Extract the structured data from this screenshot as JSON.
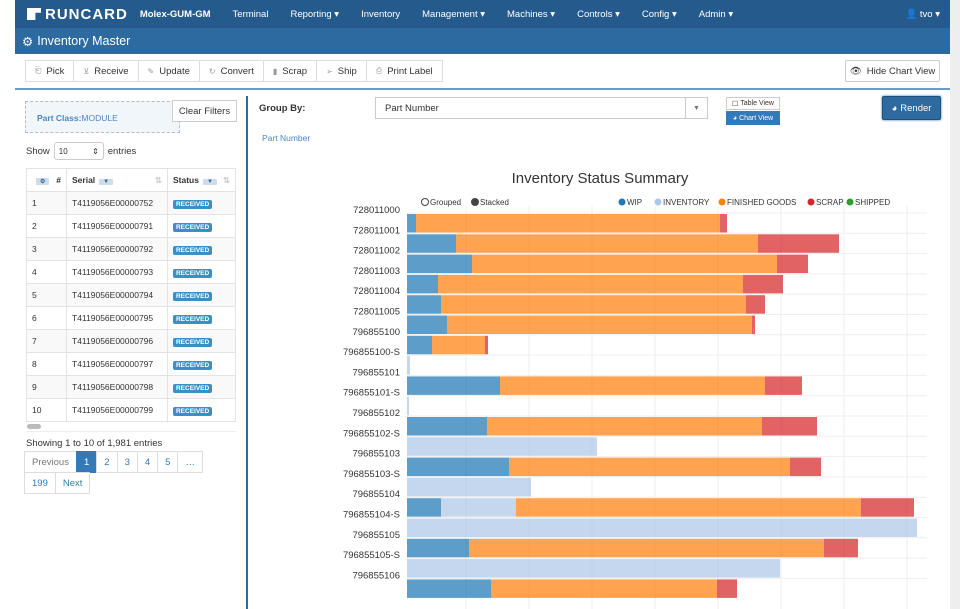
{
  "nav": {
    "logo": "RUNCARD",
    "brand": "Molex-GUM-GM",
    "items": [
      "Terminal",
      "Reporting ▾",
      "Inventory",
      "Management ▾",
      "Machines ▾",
      "Controls ▾",
      "Config ▾",
      "Admin ▾"
    ],
    "user": "👤 tvo ▾"
  },
  "title": "Inventory Master",
  "toolbar": [
    {
      "icon": "clipboard-icon",
      "glyph": "⎗",
      "label": "Pick"
    },
    {
      "icon": "download-icon",
      "glyph": "⊻",
      "label": "Receive"
    },
    {
      "icon": "edit-icon",
      "glyph": "✎",
      "label": "Update"
    },
    {
      "icon": "refresh-icon",
      "glyph": "↻",
      "label": "Convert"
    },
    {
      "icon": "trash-icon",
      "glyph": "▮",
      "label": "Scrap"
    },
    {
      "icon": "send-icon",
      "glyph": "➢",
      "label": "Ship"
    },
    {
      "icon": "print-icon",
      "glyph": "⎙",
      "label": "Print Label"
    }
  ],
  "hide_chart": "Hide Chart View",
  "filter": {
    "key": "Part Class:",
    "value": "MODULE",
    "clear": "Clear Filters"
  },
  "show": {
    "prefix": "Show",
    "value": "10",
    "suffix": "entries"
  },
  "table": {
    "headers": [
      "#",
      "Serial",
      "Status"
    ],
    "rows": [
      [
        "1",
        "T4119056E00000752",
        "RECEIVED"
      ],
      [
        "2",
        "T4119056E00000791",
        "RECEIVED"
      ],
      [
        "3",
        "T4119056E00000792",
        "RECEIVED"
      ],
      [
        "4",
        "T4119056E00000793",
        "RECEIVED"
      ],
      [
        "5",
        "T4119056E00000794",
        "RECEIVED"
      ],
      [
        "6",
        "T4119056E00000795",
        "RECEIVED"
      ],
      [
        "7",
        "T4119056E00000796",
        "RECEIVED"
      ],
      [
        "8",
        "T4119056E00000797",
        "RECEIVED"
      ],
      [
        "9",
        "T4119056E00000798",
        "RECEIVED"
      ],
      [
        "10",
        "T4119056E00000799",
        "RECEIVED"
      ]
    ]
  },
  "showing": "Showing 1 to 10 of 1,981 entries",
  "pager": [
    "Previous",
    "1",
    "2",
    "3",
    "4",
    "5",
    "…",
    "199",
    "Next"
  ],
  "groupby": {
    "label": "Group By:",
    "value": "Part Number",
    "table_view": "Table View",
    "chart_view": "Chart View",
    "render": "Render",
    "crumb": "Part Number"
  },
  "chart_data": {
    "type": "bar",
    "orientation": "horizontal",
    "stacked": true,
    "title": "Inventory Status Summary",
    "modes": [
      "Grouped",
      "Stacked"
    ],
    "mode_selected": "Stacked",
    "colors": {
      "WIP": "#1f77b4",
      "INVENTORY": "#aec7e8",
      "FINISHED GOODS": "#ff7f0e",
      "SCRAP": "#d62728",
      "SHIPPED": "#2ca02c"
    },
    "legend": [
      "WIP",
      "INVENTORY",
      "FINISHED GOODS",
      "SCRAP",
      "SHIPPED"
    ],
    "note": "values are relative (no axis shown)",
    "categories": [
      "728011000",
      "728011001",
      "728011002",
      "728011003",
      "728011004",
      "728011005",
      "796855100",
      "796855100-S",
      "796855101",
      "796855101-S",
      "796855102",
      "796855102-S",
      "796855103",
      "796855103-S",
      "796855104",
      "796855104-S",
      "796855105",
      "796855105-S",
      "796855106"
    ],
    "series": [
      {
        "name": "WIP",
        "values": [
          9,
          49,
          65,
          31,
          34,
          40,
          25,
          0,
          93,
          0,
          80,
          0,
          102,
          0,
          34,
          0,
          62,
          0,
          84
        ]
      },
      {
        "name": "INVENTORY",
        "values": [
          0,
          0,
          0,
          0,
          0,
          0,
          0,
          3,
          0,
          2,
          0,
          190,
          0,
          124,
          75,
          510,
          0,
          373,
          0
        ]
      },
      {
        "name": "FINISHED GOODS",
        "values": [
          304,
          302,
          305,
          305,
          305,
          305,
          53,
          0,
          265,
          0,
          275,
          0,
          281,
          0,
          345,
          0,
          355,
          0,
          226
        ]
      },
      {
        "name": "SCRAP",
        "values": [
          7,
          81,
          31,
          40,
          19,
          3,
          3,
          0,
          37,
          0,
          55,
          0,
          31,
          0,
          53,
          0,
          34,
          0,
          20
        ]
      },
      {
        "name": "SHIPPED",
        "values": [
          0,
          0,
          0,
          0,
          0,
          0,
          0,
          0,
          0,
          0,
          0,
          0,
          0,
          0,
          0,
          0,
          0,
          0,
          0
        ]
      }
    ],
    "xlim": [
      0,
      520
    ]
  }
}
